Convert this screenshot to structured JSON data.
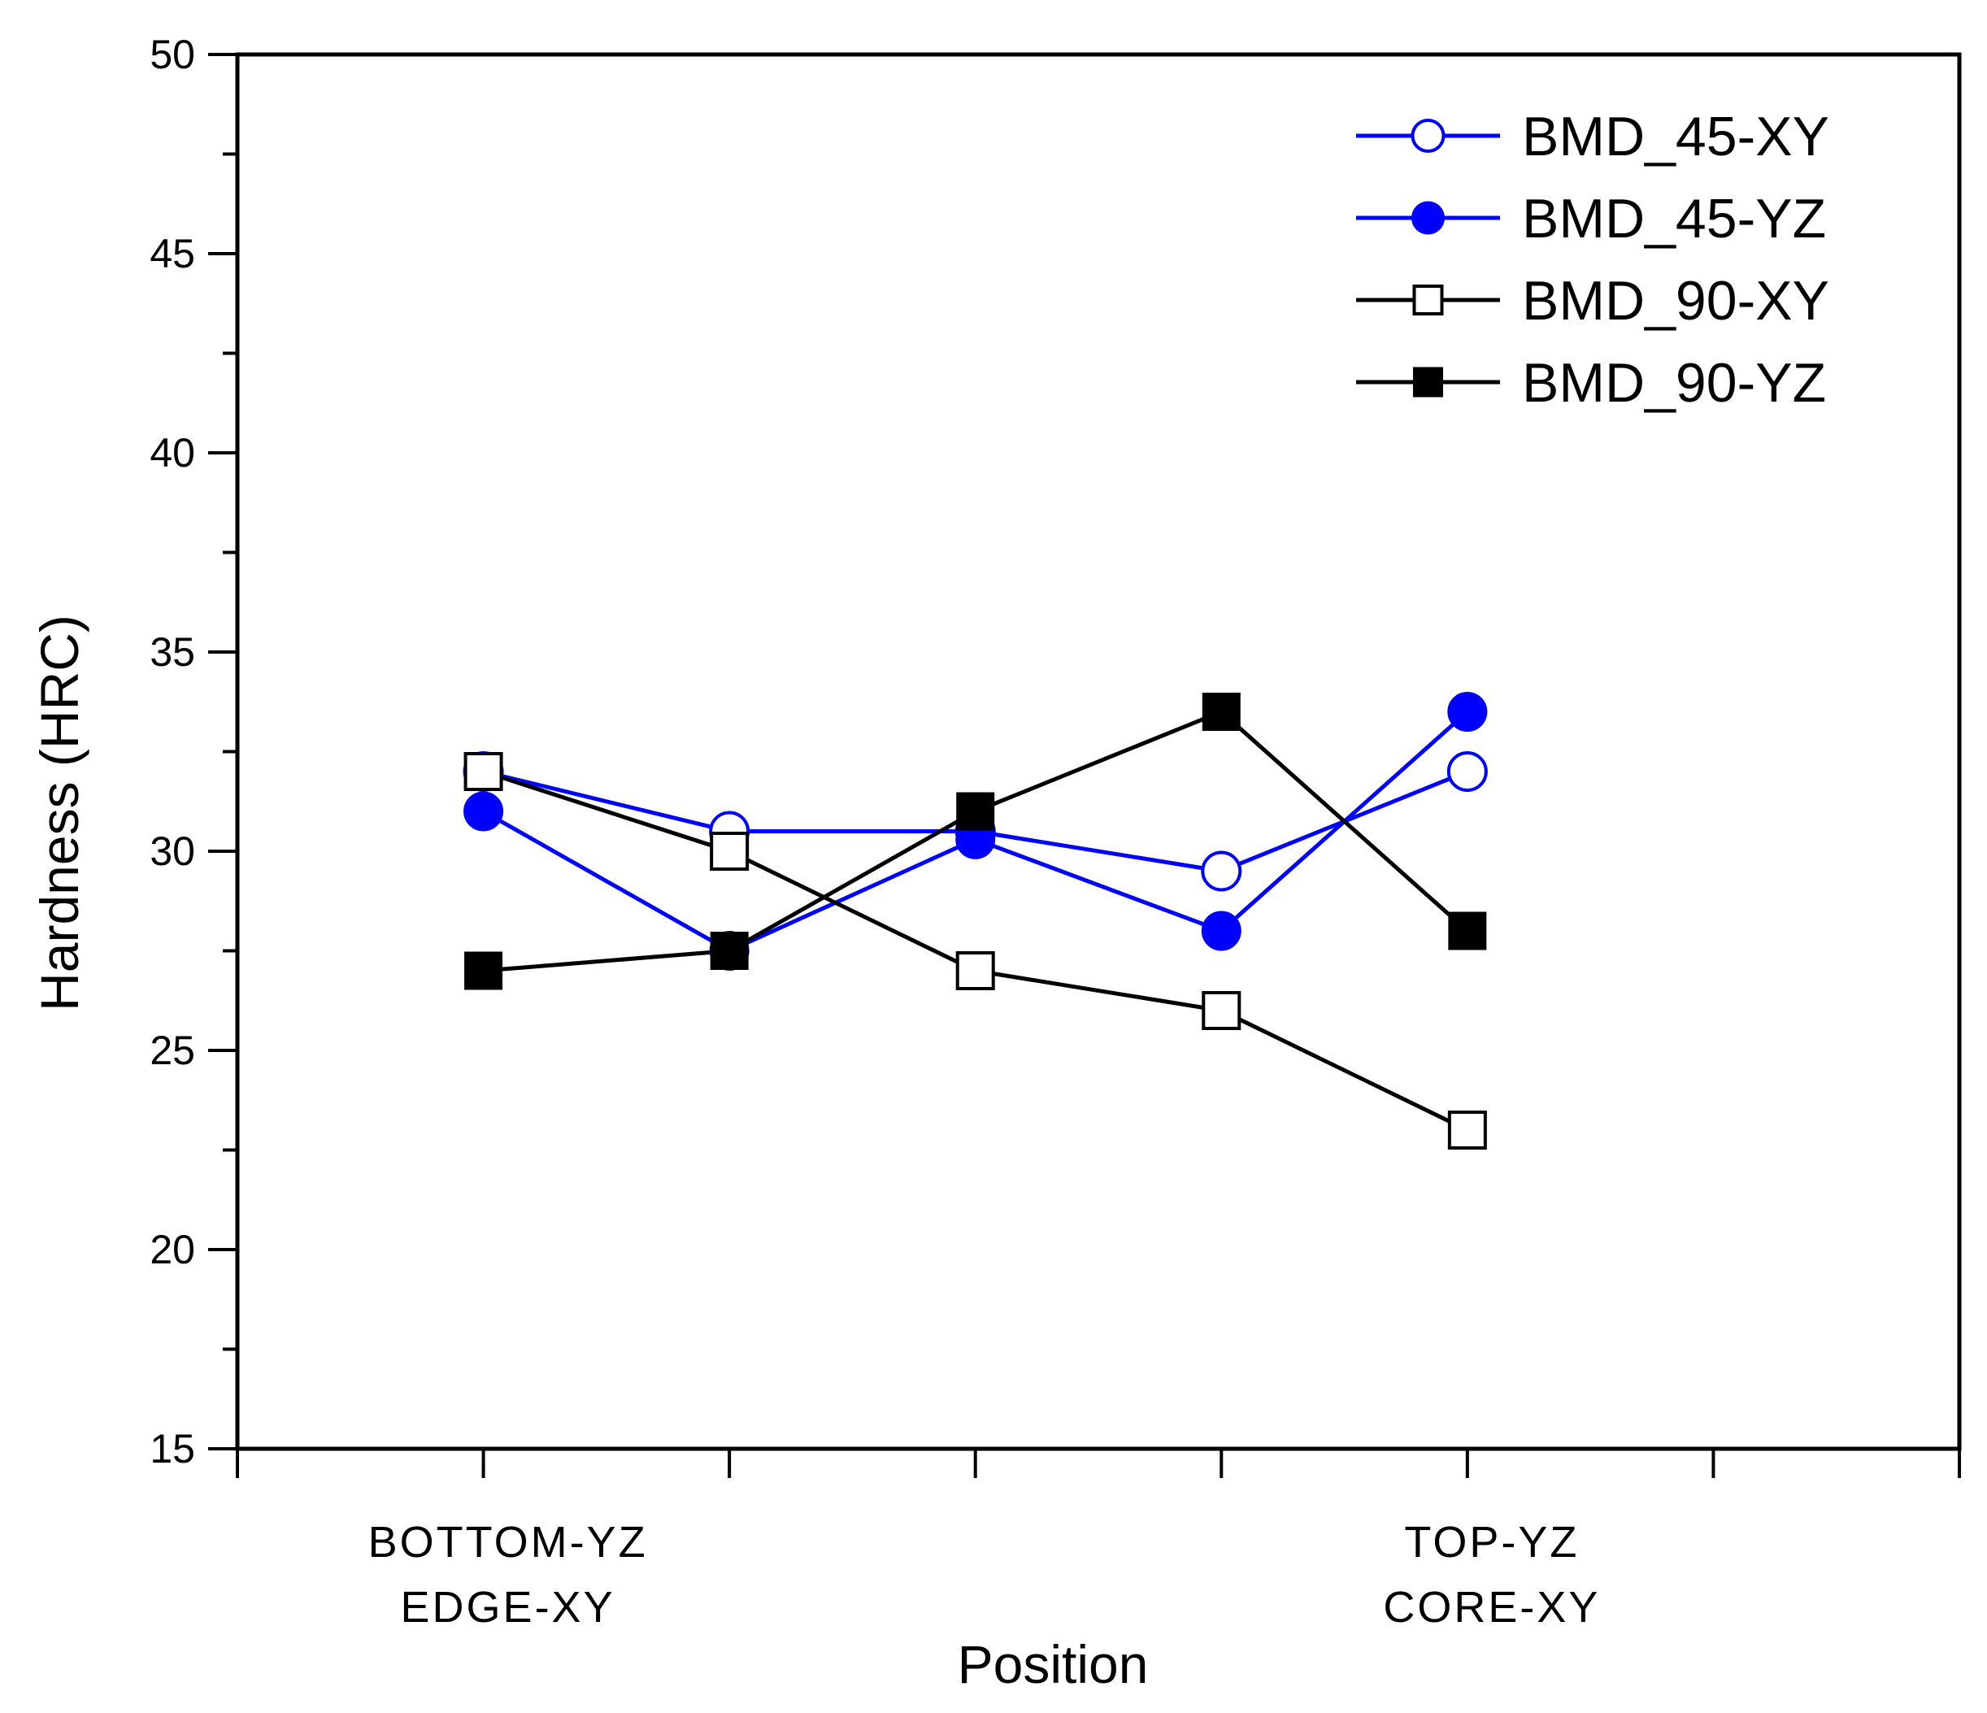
{
  "chart_data": {
    "type": "line",
    "title": "",
    "xlabel": "Position",
    "ylabel": "Hardness (HRC)",
    "ylim": [
      15,
      50
    ],
    "yticks": [
      15,
      20,
      25,
      30,
      35,
      40,
      45,
      50
    ],
    "x_positions": [
      1,
      2,
      3,
      4,
      5
    ],
    "xlim": [
      0,
      7
    ],
    "x_axis_labels": [
      {
        "x": 1,
        "lines": [
          "BOTTOM-YZ",
          "EDGE-XY"
        ]
      },
      {
        "x": 5,
        "lines": [
          "TOP-YZ",
          "CORE-XY"
        ]
      }
    ],
    "legend_position": "top-right",
    "grid": false,
    "series": [
      {
        "name": "BMD_45-XY",
        "color": "#0000ff",
        "marker": "circle-open",
        "values": [
          32,
          30.5,
          30.5,
          29.5,
          32
        ]
      },
      {
        "name": "BMD_45-YZ",
        "color": "#0000ff",
        "marker": "circle-filled",
        "values": [
          31,
          27.5,
          30.3,
          28,
          33.5
        ]
      },
      {
        "name": "BMD_90-XY",
        "color": "#000000",
        "marker": "square-open",
        "values": [
          32,
          30,
          27,
          26,
          23
        ]
      },
      {
        "name": "BMD_90-YZ",
        "color": "#000000",
        "marker": "square-filled",
        "values": [
          27,
          27.5,
          31,
          33.5,
          28
        ]
      }
    ]
  }
}
